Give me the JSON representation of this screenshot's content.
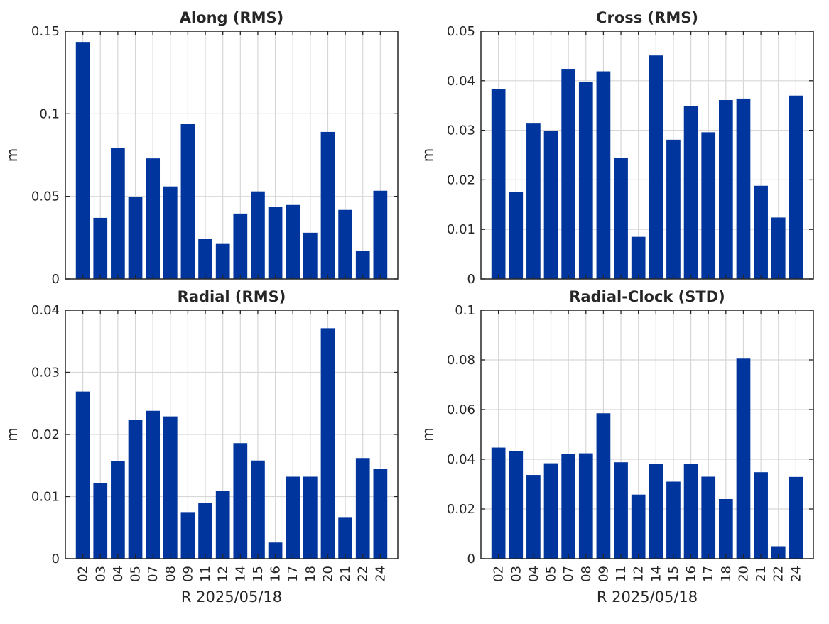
{
  "colors": {
    "bar": "#00359e",
    "axis": "#262626",
    "grid": "#d7d7d7",
    "background": "#ffffff"
  },
  "chart_data": [
    {
      "type": "bar",
      "title": "Along (RMS)",
      "ylabel": "m",
      "xlabel": "",
      "ylim": [
        0,
        0.15
      ],
      "yticks": [
        "0",
        "0.05",
        "0.1",
        "0.15"
      ],
      "grid": true,
      "categories": [
        "02",
        "03",
        "04",
        "05",
        "07",
        "08",
        "09",
        "11",
        "12",
        "14",
        "15",
        "16",
        "17",
        "18",
        "20",
        "21",
        "22",
        "24"
      ],
      "values": [
        0.1435,
        0.037,
        0.0792,
        0.0495,
        0.073,
        0.056,
        0.094,
        0.0242,
        0.0212,
        0.0396,
        0.053,
        0.0436,
        0.0448,
        0.028,
        0.089,
        0.0418,
        0.0168,
        0.0534
      ]
    },
    {
      "type": "bar",
      "title": "Cross (RMS)",
      "ylabel": "m",
      "xlabel": "",
      "ylim": [
        0,
        0.05
      ],
      "yticks": [
        "0",
        "0.01",
        "0.02",
        "0.03",
        "0.04",
        "0.05"
      ],
      "grid": true,
      "categories": [
        "02",
        "03",
        "04",
        "05",
        "07",
        "08",
        "09",
        "11",
        "12",
        "14",
        "15",
        "16",
        "17",
        "18",
        "20",
        "21",
        "22",
        "24"
      ],
      "values": [
        0.0383,
        0.0175,
        0.0315,
        0.0299,
        0.0424,
        0.0397,
        0.0419,
        0.0244,
        0.0085,
        0.0451,
        0.0281,
        0.0349,
        0.0296,
        0.0361,
        0.0364,
        0.0188,
        0.0124,
        0.037
      ]
    },
    {
      "type": "bar",
      "title": "Radial (RMS)",
      "ylabel": "m",
      "xlabel": "R 2025/05/18",
      "ylim": [
        0,
        0.04
      ],
      "yticks": [
        "0",
        "0.01",
        "0.02",
        "0.03",
        "0.04"
      ],
      "grid": true,
      "categories": [
        "02",
        "03",
        "04",
        "05",
        "07",
        "08",
        "09",
        "11",
        "12",
        "14",
        "15",
        "16",
        "17",
        "18",
        "20",
        "21",
        "22",
        "24"
      ],
      "values": [
        0.0269,
        0.0122,
        0.0157,
        0.0224,
        0.0238,
        0.0229,
        0.0075,
        0.009,
        0.0109,
        0.0186,
        0.0158,
        0.0026,
        0.0132,
        0.0132,
        0.0371,
        0.0067,
        0.0162,
        0.0144
      ]
    },
    {
      "type": "bar",
      "title": "Radial-Clock (STD)",
      "ylabel": "m",
      "xlabel": "R 2025/05/18",
      "ylim": [
        0,
        0.1
      ],
      "yticks": [
        "0",
        "0.02",
        "0.04",
        "0.06",
        "0.08",
        "0.1"
      ],
      "grid": true,
      "categories": [
        "02",
        "03",
        "04",
        "05",
        "07",
        "08",
        "09",
        "11",
        "12",
        "14",
        "15",
        "16",
        "17",
        "18",
        "20",
        "21",
        "22",
        "24"
      ],
      "values": [
        0.0447,
        0.0434,
        0.0337,
        0.0384,
        0.0421,
        0.0424,
        0.0585,
        0.0388,
        0.0258,
        0.038,
        0.031,
        0.038,
        0.033,
        0.024,
        0.0805,
        0.0348,
        0.005,
        0.0329
      ]
    }
  ]
}
